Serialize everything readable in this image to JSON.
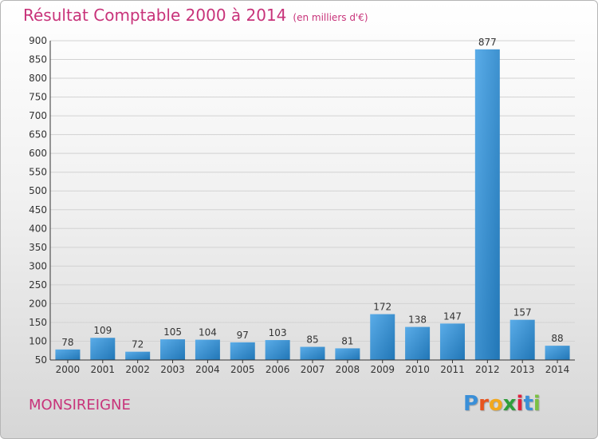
{
  "header": {
    "title": "Résultat Comptable 2000 à 2014",
    "unit": "(en milliers d'€)"
  },
  "footer": {
    "commune": "MONSIREIGNE",
    "logo_letters": [
      "P",
      "r",
      "o",
      "x",
      "i",
      "t",
      "i"
    ]
  },
  "colors": {
    "title": "#c8337a",
    "bar_light": "#5aace8",
    "bar_dark": "#2176b6",
    "logo": [
      "#3a8fd8",
      "#e8541e",
      "#f2a81d",
      "#2f9e3a",
      "#e0223d",
      "#3a8fd8",
      "#7bc043"
    ]
  },
  "chart_data": {
    "type": "bar",
    "title": "Résultat Comptable 2000 à 2014",
    "subtitle": "(en milliers d'€)",
    "categories": [
      "2000",
      "2001",
      "2002",
      "2003",
      "2004",
      "2005",
      "2006",
      "2007",
      "2008",
      "2009",
      "2010",
      "2011",
      "2012",
      "2013",
      "2014"
    ],
    "values": [
      78,
      109,
      72,
      105,
      104,
      97,
      103,
      85,
      81,
      172,
      138,
      147,
      877,
      157,
      88
    ],
    "ylim": [
      50,
      900
    ],
    "yticks": [
      50,
      100,
      150,
      200,
      250,
      300,
      350,
      400,
      450,
      500,
      550,
      600,
      650,
      700,
      750,
      800,
      850,
      900
    ],
    "grid": true,
    "legend": "none"
  }
}
